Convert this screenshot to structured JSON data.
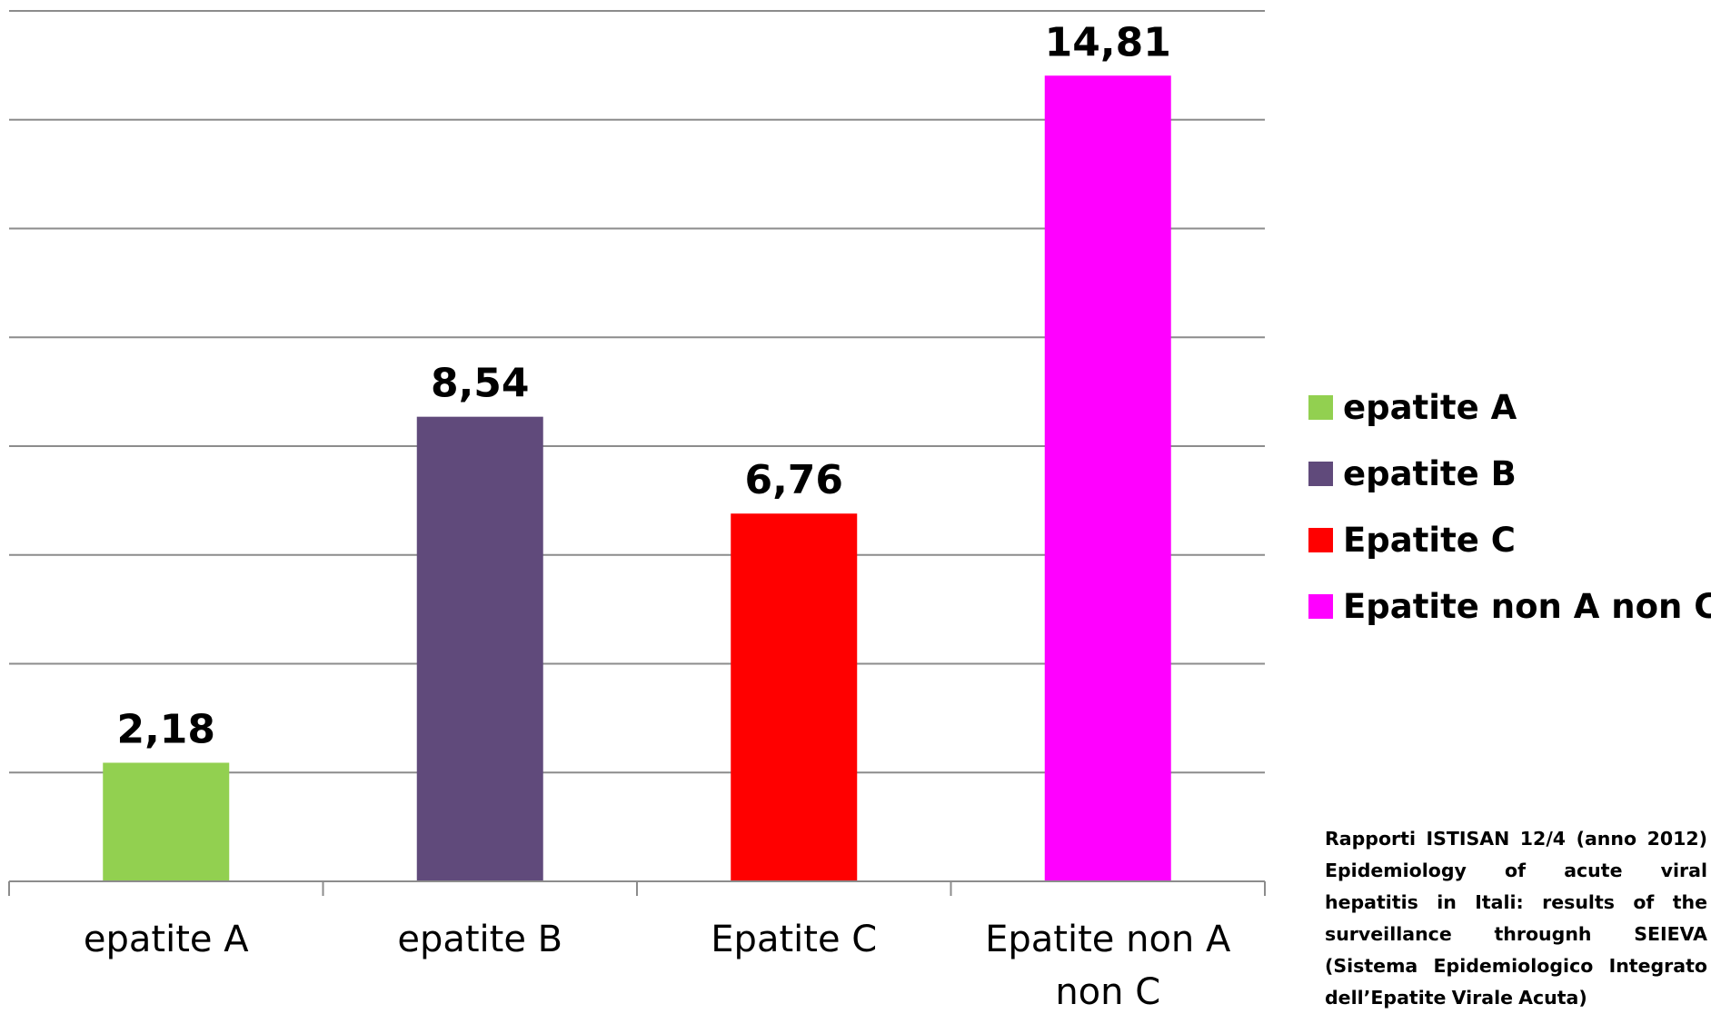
{
  "chart_data": {
    "type": "bar",
    "categories": [
      "epatite A",
      "epatite B",
      "Epatite C",
      "Epatite non A non C"
    ],
    "values": [
      2.18,
      8.54,
      6.76,
      14.81
    ],
    "value_labels": [
      "2,18",
      "8,54",
      "6,76",
      "14,81"
    ],
    "colors": [
      "#92D050",
      "#604A7B",
      "#FF0000",
      "#FF00FF"
    ],
    "ylim": [
      0,
      16
    ],
    "grid": true,
    "legend_position": "right",
    "legend": [
      "epatite A",
      "epatite B",
      "Epatite C",
      "Epatite non A non C"
    ]
  },
  "source_note": "Rapporti ISTISAN 12/4 (anno 2012) Epidemiology of acute viral hepatitis in Itali: results of the surveillance througnh SEIEVA (Sistema Epidemiologico Integrato dell’Epatite Virale Acuta)"
}
